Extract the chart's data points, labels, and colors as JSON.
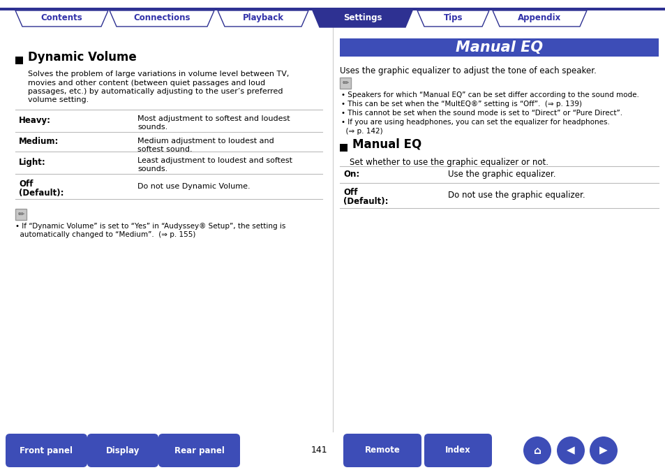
{
  "page_bg": "#ffffff",
  "tab_inactive_bg": "#ffffff",
  "tab_inactive_border": "#3333aa",
  "tab_inactive_text": "#3333aa",
  "tab_active_bg": "#2e3192",
  "tab_active_text": "#ffffff",
  "tabs": [
    "Contents",
    "Connections",
    "Playback",
    "Settings",
    "Tips",
    "Appendix"
  ],
  "active_tab_index": 3,
  "top_bar_color": "#2e3192",
  "left_title": "Dynamic Volume",
  "left_intro_lines": [
    "Solves the problem of large variations in volume level between TV,",
    "movies and other content (between quiet passages and loud",
    "passages, etc.) by automatically adjusting to the user’s preferred",
    "volume setting."
  ],
  "left_table": [
    {
      "label": "Heavy:",
      "desc": "Most adjustment to softest and loudest\nsounds."
    },
    {
      "label": "Medium:",
      "desc": "Medium adjustment to loudest and\nsoftest sound."
    },
    {
      "label": "Light:",
      "desc": "Least adjustment to loudest and softest\nsounds."
    },
    {
      "label": "Off\n(Default):",
      "desc": "Do not use Dynamic Volume."
    }
  ],
  "left_note_lines": [
    "• If “Dynamic Volume” is set to “Yes” in “Audyssey® Setup”, the setting is",
    "  automatically changed to “Medium”.  (⇒ p. 155)"
  ],
  "right_header_bg": "#3d4db7",
  "right_header_text": "Manual EQ",
  "right_intro": "Uses the graphic equalizer to adjust the tone of each speaker.",
  "right_bullets": [
    "• Speakers for which “Manual EQ” can be set differ according to the sound mode.",
    "• This can be set when the “MultEQ®” setting is “Off”.  (⇒ p. 139)",
    "• This cannot be set when the sound mode is set to “Direct” or “Pure Direct”.",
    "• If you are using headphones, you can set the equalizer for headphones.",
    "  (⇒ p. 142)"
  ],
  "right_title2": "Manual EQ",
  "right_intro2": "Set whether to use the graphic equalizer or not.",
  "right_table2": [
    {
      "label": "On:",
      "desc": "Use the graphic equalizer."
    },
    {
      "label": "Off\n(Default):",
      "desc": "Do not use the graphic equalizer."
    }
  ],
  "bottom_btns": [
    "Front panel",
    "Display",
    "Rear panel",
    "Remote",
    "Index"
  ],
  "btn_bg": "#3d4db7",
  "btn_text": "#ffffff",
  "page_num": "141",
  "divider_color": "#2e3192",
  "table_line": "#bbbbbb",
  "mid_divider": "#cccccc"
}
